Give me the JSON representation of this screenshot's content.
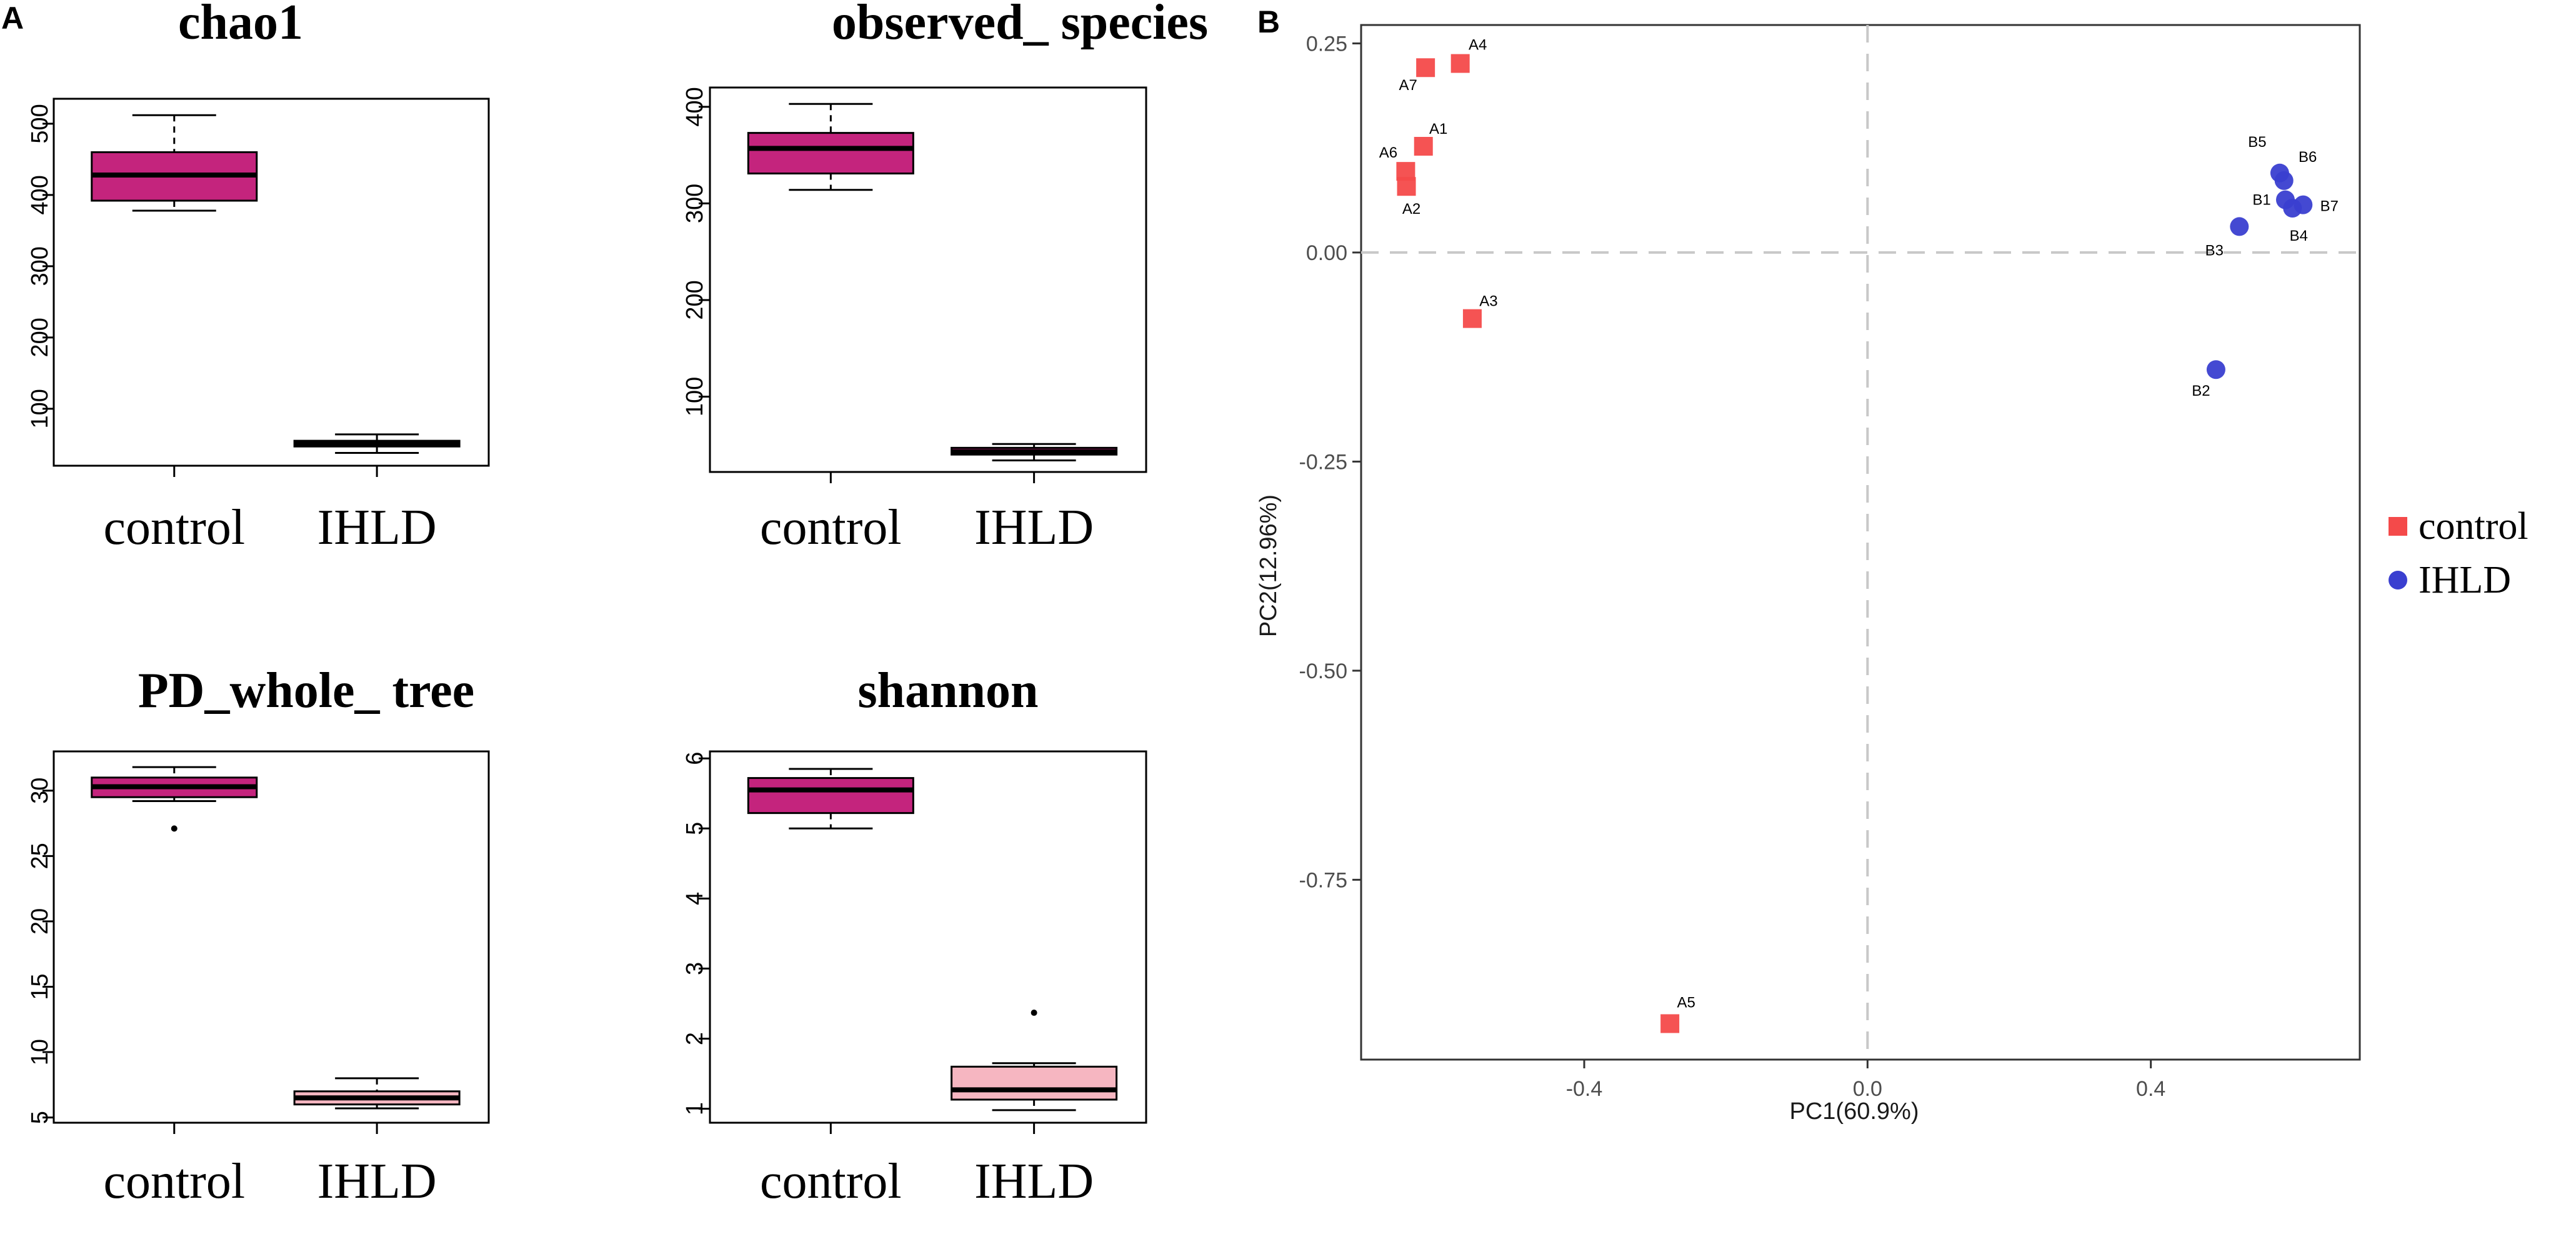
{
  "panels": {
    "a": "A",
    "b": "B"
  },
  "colors": {
    "control_box": "#c4247d",
    "ihld_box_dark": "#c4247d",
    "ihld_box_light": "#f6b6c1",
    "control_point": "#f44a4a",
    "ihld_point": "#3a3fd0",
    "zero_line": "#c8c8c8"
  },
  "chart_data": [
    {
      "type": "box",
      "title": "chao1",
      "categories": [
        "control",
        "IHLD"
      ],
      "ylim": [
        20,
        535
      ],
      "yticks": [
        100,
        200,
        300,
        400,
        500
      ],
      "yticklabels": [
        "100",
        "200",
        "300",
        "400",
        "500"
      ],
      "boxes": [
        {
          "whisker_low": 378,
          "q1": 392,
          "median": 428,
          "q3": 460,
          "whisker_high": 512,
          "outliers": [],
          "fill": "#c4247d"
        },
        {
          "whisker_low": 38,
          "q1": 47,
          "median": 51,
          "q3": 55,
          "whisker_high": 64,
          "outliers": [],
          "fill": "#c4247d"
        }
      ]
    },
    {
      "type": "box",
      "title": "observed_ species",
      "categories": [
        "control",
        "IHLD"
      ],
      "ylim": [
        22,
        420
      ],
      "yticks": [
        100,
        200,
        300,
        400
      ],
      "yticklabels": [
        "100",
        "200",
        "300",
        "400"
      ],
      "boxes": [
        {
          "whisker_low": 314,
          "q1": 331,
          "median": 357,
          "q3": 373,
          "whisker_high": 403,
          "outliers": [],
          "fill": "#c4247d"
        },
        {
          "whisker_low": 34,
          "q1": 40,
          "median": 43,
          "q3": 47,
          "whisker_high": 51,
          "outliers": [],
          "fill": "#c4247d"
        }
      ]
    },
    {
      "type": "box",
      "title": "PD_whole_ tree",
      "categories": [
        "control",
        "IHLD"
      ],
      "ylim": [
        4.6,
        33
      ],
      "yticks": [
        5,
        10,
        15,
        20,
        25,
        30
      ],
      "yticklabels": [
        "5",
        "10",
        "15",
        "20",
        "25",
        "30"
      ],
      "boxes": [
        {
          "whisker_low": 29.2,
          "q1": 29.5,
          "median": 30.3,
          "q3": 31.0,
          "whisker_high": 31.8,
          "outliers": [
            27.1
          ],
          "fill": "#c4247d"
        },
        {
          "whisker_low": 5.7,
          "q1": 6.0,
          "median": 6.5,
          "q3": 7.0,
          "whisker_high": 8.0,
          "outliers": [],
          "fill": "#f6b6c1"
        }
      ]
    },
    {
      "type": "box",
      "title": "shannon",
      "categories": [
        "control",
        "IHLD"
      ],
      "ylim": [
        0.8,
        6.1
      ],
      "yticks": [
        1,
        2,
        3,
        4,
        5,
        6
      ],
      "yticklabels": [
        "1",
        "2",
        "3",
        "4",
        "5",
        "6"
      ],
      "boxes": [
        {
          "whisker_low": 5.0,
          "q1": 5.22,
          "median": 5.55,
          "q3": 5.72,
          "whisker_high": 5.85,
          "outliers": [],
          "fill": "#c4247d"
        },
        {
          "whisker_low": 0.98,
          "q1": 1.13,
          "median": 1.27,
          "q3": 1.6,
          "whisker_high": 1.65,
          "outliers": [
            2.37
          ],
          "fill": "#f6b6c1"
        }
      ]
    },
    {
      "type": "scatter",
      "xlabel": "PC1(60.9%)",
      "ylabel": "PC2(12.96%)",
      "xlim": [
        -0.715,
        0.695
      ],
      "ylim": [
        -0.965,
        0.272
      ],
      "xticks": [
        -0.4,
        0.0,
        0.4
      ],
      "xticklabels": [
        "-0.4",
        "0.0",
        "0.4"
      ],
      "yticks": [
        0.25,
        0.0,
        -0.25,
        -0.5,
        -0.75
      ],
      "yticklabels": [
        "0.25",
        "0.00",
        "-0.25",
        "-0.50",
        "-0.75"
      ],
      "series": [
        {
          "name": "control",
          "marker": "square",
          "points": [
            {
              "label": "A4",
              "x": -0.575,
              "y": 0.226
            },
            {
              "label": "A7",
              "x": -0.624,
              "y": 0.221
            },
            {
              "label": "A1",
              "x": -0.627,
              "y": 0.127
            },
            {
              "label": "A6",
              "x": -0.652,
              "y": 0.097
            },
            {
              "label": "A2",
              "x": -0.651,
              "y": 0.079
            },
            {
              "label": "A3",
              "x": -0.558,
              "y": -0.079
            },
            {
              "label": "A5",
              "x": -0.279,
              "y": -0.922
            }
          ]
        },
        {
          "name": "IHLD",
          "marker": "circle",
          "points": [
            {
              "label": "B5",
              "x": 0.582,
              "y": 0.095
            },
            {
              "label": "B6",
              "x": 0.588,
              "y": 0.086
            },
            {
              "label": "B1",
              "x": 0.59,
              "y": 0.063
            },
            {
              "label": "B7",
              "x": 0.615,
              "y": 0.057
            },
            {
              "label": "B4",
              "x": 0.6,
              "y": 0.053
            },
            {
              "label": "B3",
              "x": 0.525,
              "y": 0.031
            },
            {
              "label": "B2",
              "x": 0.492,
              "y": -0.14
            }
          ]
        }
      ],
      "legend": {
        "position": "right",
        "entries": [
          "control",
          "IHLD"
        ]
      }
    }
  ]
}
